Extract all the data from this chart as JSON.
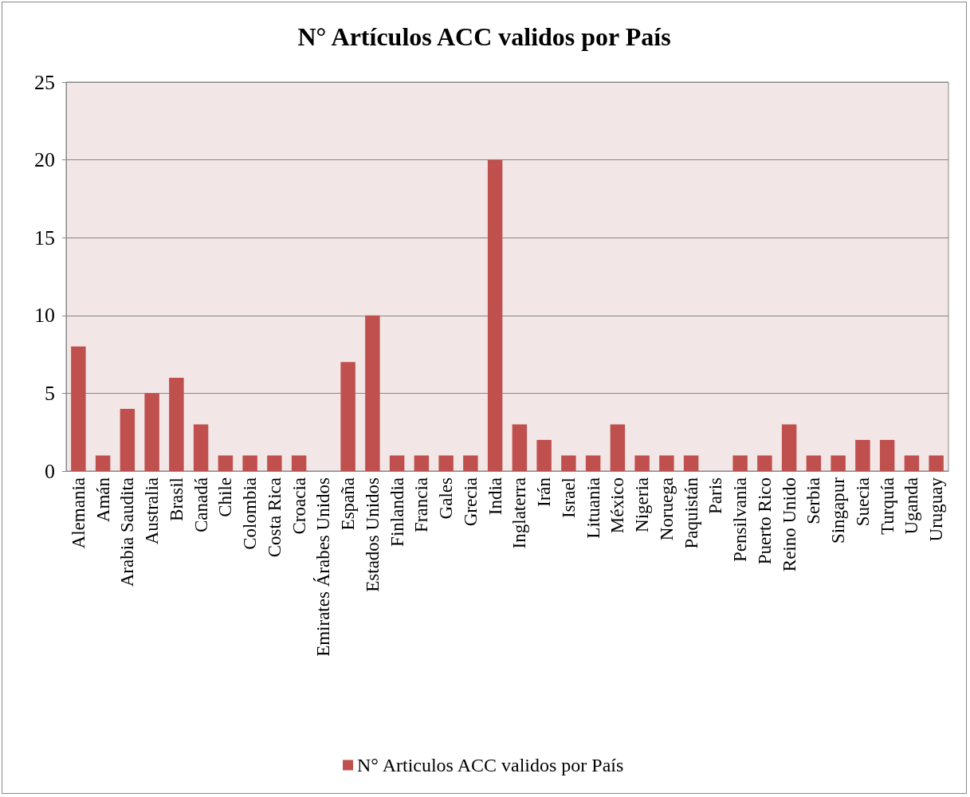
{
  "chart_data": {
    "type": "bar",
    "title": "N° Artículos ACC validos por País",
    "categories": [
      "Alemania",
      "Amán",
      "Arabia Saudita",
      "Australia",
      "Brasil",
      "Canadá",
      "Chile",
      "Colombia",
      "Costa Rica",
      "Croacia",
      "Emirates Árabes Unidos",
      "España",
      "Estados Unidos",
      "Finlandia",
      "Francia",
      "Gales",
      "Grecia",
      "India",
      "Inglaterra",
      "Irán",
      "Israel",
      "Lituania",
      "México",
      "Nigeria",
      "Noruega",
      "Paquistán",
      "Paris",
      "Pensilvania",
      "Puerto Rico",
      "Reino Unido",
      "Serbia",
      "Singapur",
      "Suecia",
      "Turquía",
      "Uganda",
      "Uruguay"
    ],
    "series": [
      {
        "name": "N° Articulos ACC validos por País",
        "color": "#c0504d",
        "values": [
          8,
          1,
          4,
          5,
          6,
          3,
          1,
          1,
          1,
          1,
          0,
          7,
          10,
          1,
          1,
          1,
          1,
          20,
          3,
          2,
          1,
          1,
          3,
          1,
          1,
          1,
          0,
          1,
          1,
          3,
          1,
          1,
          2,
          2,
          1,
          1
        ]
      }
    ],
    "ylim": [
      0,
      25
    ],
    "yticks": [
      0,
      5,
      10,
      15,
      20,
      25
    ],
    "grid": "y",
    "legend": "bottom"
  }
}
